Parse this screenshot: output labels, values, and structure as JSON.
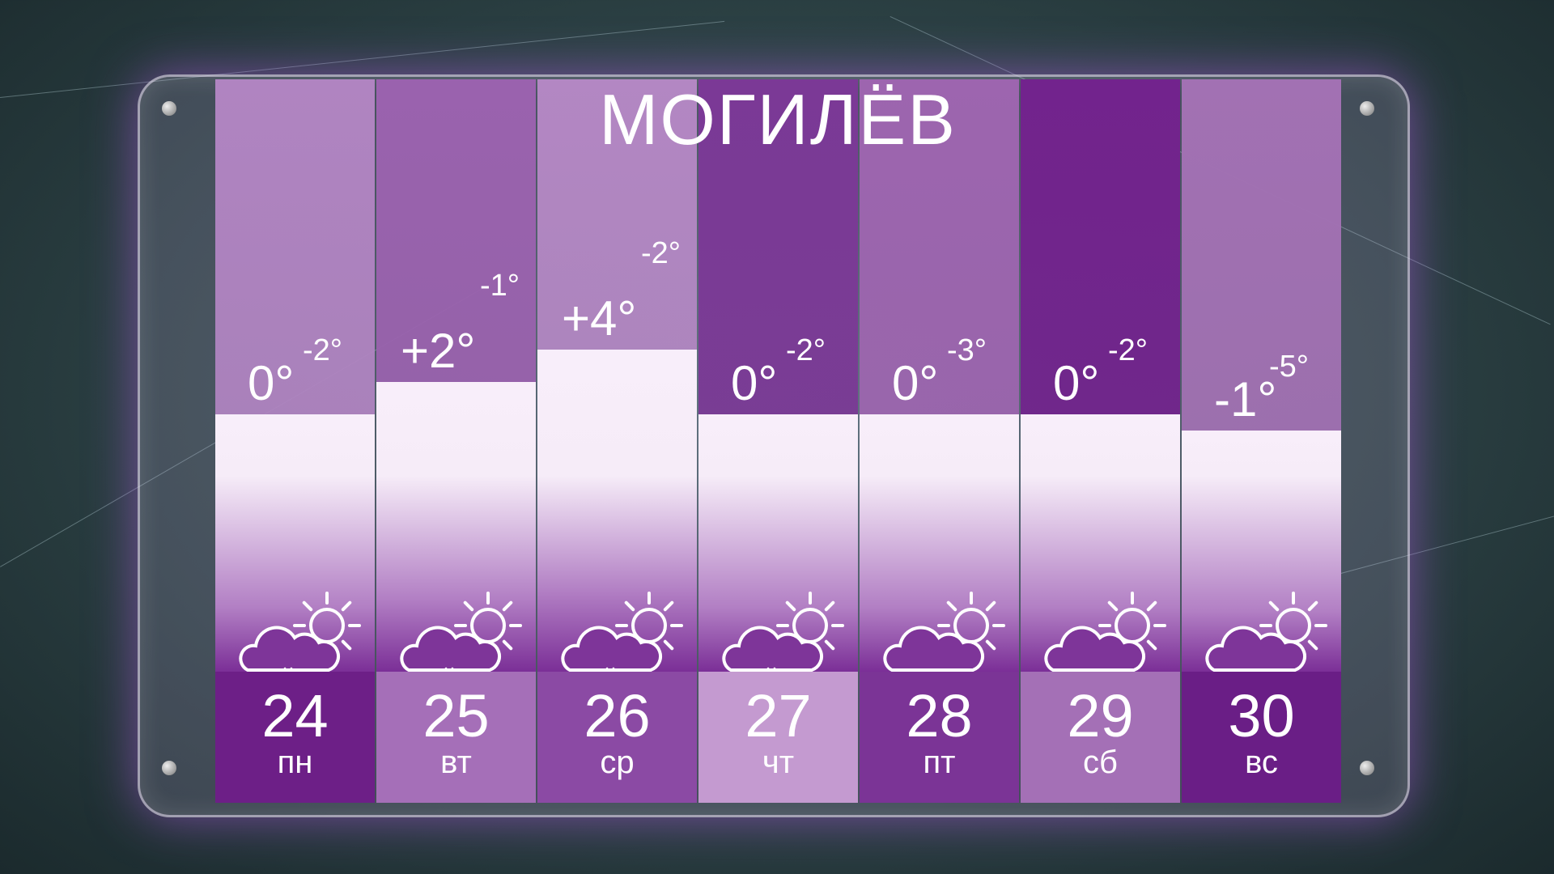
{
  "title": "МОГИЛЁВ",
  "days": [
    {
      "date": "24",
      "weekday": "пн",
      "day_temp": "0°",
      "night_temp": "-2°",
      "weather": "cloud-sun-snow-icon",
      "upper_color": "#b084c1",
      "band_color": "#6d1f87"
    },
    {
      "date": "25",
      "weekday": "вт",
      "day_temp": "+2°",
      "night_temp": "-1°",
      "weather": "cloud-sun-snow-icon",
      "upper_color": "#9a62ae",
      "band_color": "#a56fb8"
    },
    {
      "date": "26",
      "weekday": "ср",
      "day_temp": "+4°",
      "night_temp": "-2°",
      "weather": "cloud-sun-snow-icon",
      "upper_color": "#b387c3",
      "band_color": "#8b4aa4"
    },
    {
      "date": "27",
      "weekday": "чт",
      "day_temp": "0°",
      "night_temp": "-2°",
      "weather": "cloud-sun-snow-icon",
      "upper_color": "#7b3996",
      "band_color": "#c49ad0"
    },
    {
      "date": "28",
      "weekday": "пт",
      "day_temp": "0°",
      "night_temp": "-3°",
      "weather": "cloud-sun-icon",
      "upper_color": "#9d65af",
      "band_color": "#7b3496"
    },
    {
      "date": "29",
      "weekday": "сб",
      "day_temp": "0°",
      "night_temp": "-2°",
      "weather": "cloud-sun-icon",
      "upper_color": "#72238d",
      "band_color": "#a470b6"
    },
    {
      "date": "30",
      "weekday": "вс",
      "day_temp": "-1°",
      "night_temp": "-5°",
      "weather": "cloud-sun-icon",
      "upper_color": "#a271b3",
      "band_color": "#6a1e86"
    }
  ],
  "chart_data": {
    "type": "bar",
    "title": "МОГИЛЁВ",
    "categories": [
      "24 пн",
      "25 вт",
      "26 ср",
      "27 чт",
      "28 пт",
      "29 сб",
      "30 вс"
    ],
    "series": [
      {
        "values": [
          0,
          2,
          4,
          0,
          0,
          0,
          -1
        ]
      },
      {
        "values": [
          -2,
          -1,
          -2,
          -2,
          -3,
          -2,
          -5
        ]
      }
    ],
    "bar_series": 0,
    "grid": false,
    "colors": {
      "bar": "#f8eefa",
      "accent": "#7b2f97"
    }
  }
}
